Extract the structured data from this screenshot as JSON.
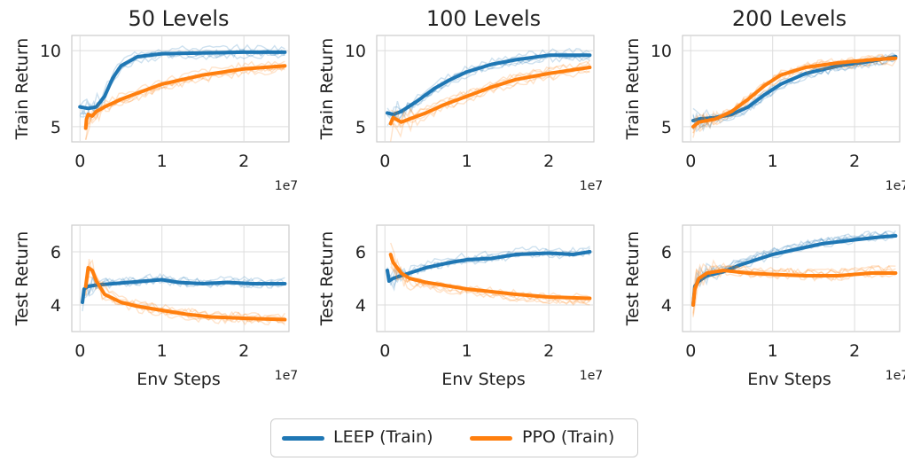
{
  "chart_data": [
    {
      "type": "line",
      "title": "50 Levels",
      "ylabel": "Train Return",
      "xlabel": "",
      "x_exponent_label": "1e7",
      "xlim": [
        -0.1,
        2.55
      ],
      "ylim": [
        4.0,
        11.0
      ],
      "xticks": [
        0,
        1,
        2
      ],
      "yticks": [
        5,
        10
      ],
      "series": [
        {
          "name": "LEEP (Train)",
          "color": "#1f77b4",
          "x": [
            0.0,
            0.1,
            0.2,
            0.3,
            0.4,
            0.5,
            0.7,
            1.0,
            1.5,
            2.0,
            2.5
          ],
          "y": [
            6.3,
            6.2,
            6.3,
            7.0,
            8.2,
            9.0,
            9.6,
            9.8,
            9.85,
            9.9,
            9.9
          ]
        },
        {
          "name": "PPO (Train)",
          "color": "#ff7f0e",
          "x": [
            0.07,
            0.08,
            0.1,
            0.15,
            0.2,
            0.3,
            0.5,
            0.75,
            1.0,
            1.5,
            2.0,
            2.5
          ],
          "y": [
            4.9,
            5.5,
            5.8,
            5.7,
            6.0,
            6.3,
            6.8,
            7.3,
            7.8,
            8.4,
            8.8,
            9.0
          ]
        }
      ]
    },
    {
      "type": "line",
      "title": "100 Levels",
      "ylabel": "Train Return",
      "xlabel": "",
      "x_exponent_label": "1e7",
      "xlim": [
        -0.1,
        2.55
      ],
      "ylim": [
        4.0,
        11.0
      ],
      "xticks": [
        0,
        1,
        2
      ],
      "yticks": [
        5,
        10
      ],
      "series": [
        {
          "name": "LEEP (Train)",
          "color": "#1f77b4",
          "x": [
            0.03,
            0.1,
            0.2,
            0.4,
            0.6,
            0.8,
            1.0,
            1.3,
            1.6,
            2.0,
            2.5
          ],
          "y": [
            5.9,
            5.8,
            6.0,
            6.7,
            7.5,
            8.1,
            8.6,
            9.1,
            9.4,
            9.7,
            9.7
          ]
        },
        {
          "name": "PPO (Train)",
          "color": "#ff7f0e",
          "x": [
            0.07,
            0.1,
            0.2,
            0.3,
            0.5,
            0.7,
            1.0,
            1.3,
            1.6,
            2.0,
            2.5
          ],
          "y": [
            5.2,
            5.6,
            5.3,
            5.5,
            5.9,
            6.4,
            7.0,
            7.6,
            8.1,
            8.5,
            8.9
          ]
        }
      ]
    },
    {
      "type": "line",
      "title": "200 Levels",
      "ylabel": "Train Return",
      "xlabel": "",
      "x_exponent_label": "1e7",
      "xlim": [
        -0.1,
        2.55
      ],
      "ylim": [
        4.0,
        11.0
      ],
      "xticks": [
        0,
        1,
        2
      ],
      "yticks": [
        5,
        10
      ],
      "series": [
        {
          "name": "LEEP (Train)",
          "color": "#1f77b4",
          "x": [
            0.03,
            0.1,
            0.3,
            0.5,
            0.7,
            0.9,
            1.1,
            1.4,
            1.8,
            2.2,
            2.5
          ],
          "y": [
            5.4,
            5.5,
            5.6,
            5.8,
            6.3,
            7.1,
            7.8,
            8.5,
            9.0,
            9.3,
            9.6
          ]
        },
        {
          "name": "PPO (Train)",
          "color": "#ff7f0e",
          "x": [
            0.03,
            0.1,
            0.3,
            0.5,
            0.7,
            0.9,
            1.1,
            1.4,
            1.8,
            2.2,
            2.5
          ],
          "y": [
            5.0,
            5.3,
            5.5,
            6.0,
            6.8,
            7.7,
            8.4,
            8.9,
            9.2,
            9.4,
            9.5
          ]
        }
      ]
    },
    {
      "type": "line",
      "title": "",
      "ylabel": "Test Return",
      "xlabel": "Env Steps",
      "x_exponent_label": "1e7",
      "xlim": [
        -0.1,
        2.55
      ],
      "ylim": [
        3.0,
        7.0
      ],
      "xticks": [
        0,
        1,
        2
      ],
      "yticks": [
        4,
        6
      ],
      "series": [
        {
          "name": "LEEP (Train)",
          "color": "#1f77b4",
          "x": [
            0.03,
            0.05,
            0.1,
            0.2,
            0.4,
            0.6,
            0.8,
            1.0,
            1.2,
            1.5,
            1.8,
            2.1,
            2.5
          ],
          "y": [
            4.1,
            4.6,
            4.7,
            4.75,
            4.8,
            4.85,
            4.9,
            4.95,
            4.85,
            4.8,
            4.85,
            4.8,
            4.8
          ]
        },
        {
          "name": "PPO (Train)",
          "color": "#ff7f0e",
          "x": [
            0.07,
            0.1,
            0.15,
            0.2,
            0.3,
            0.5,
            0.7,
            1.0,
            1.3,
            1.6,
            2.0,
            2.5
          ],
          "y": [
            4.7,
            5.4,
            5.3,
            4.9,
            4.4,
            4.1,
            3.95,
            3.8,
            3.65,
            3.55,
            3.5,
            3.45
          ]
        }
      ]
    },
    {
      "type": "line",
      "title": "",
      "ylabel": "Test Return",
      "xlabel": "Env Steps",
      "x_exponent_label": "1e7",
      "xlim": [
        -0.1,
        2.55
      ],
      "ylim": [
        3.0,
        7.0
      ],
      "xticks": [
        0,
        1,
        2
      ],
      "yticks": [
        4,
        6
      ],
      "series": [
        {
          "name": "LEEP (Train)",
          "color": "#1f77b4",
          "x": [
            0.03,
            0.05,
            0.1,
            0.2,
            0.3,
            0.5,
            0.8,
            1.0,
            1.3,
            1.6,
            2.0,
            2.3,
            2.5
          ],
          "y": [
            5.3,
            4.9,
            5.0,
            5.1,
            5.2,
            5.4,
            5.6,
            5.7,
            5.75,
            5.9,
            5.95,
            5.9,
            6.0
          ]
        },
        {
          "name": "PPO (Train)",
          "color": "#ff7f0e",
          "x": [
            0.07,
            0.1,
            0.15,
            0.2,
            0.3,
            0.5,
            0.8,
            1.0,
            1.3,
            1.6,
            2.0,
            2.5
          ],
          "y": [
            5.9,
            5.6,
            5.4,
            5.2,
            5.0,
            4.85,
            4.7,
            4.6,
            4.5,
            4.4,
            4.3,
            4.25
          ]
        }
      ]
    },
    {
      "type": "line",
      "title": "",
      "ylabel": "Test Return",
      "xlabel": "Env Steps",
      "x_exponent_label": "1e7",
      "xlim": [
        -0.1,
        2.55
      ],
      "ylim": [
        3.0,
        7.0
      ],
      "xticks": [
        0,
        1,
        2
      ],
      "yticks": [
        4,
        6
      ],
      "series": [
        {
          "name": "LEEP (Train)",
          "color": "#1f77b4",
          "x": [
            0.03,
            0.05,
            0.1,
            0.2,
            0.4,
            0.6,
            0.8,
            1.0,
            1.3,
            1.6,
            2.0,
            2.3,
            2.5
          ],
          "y": [
            4.0,
            4.7,
            4.9,
            5.1,
            5.25,
            5.5,
            5.7,
            5.9,
            6.1,
            6.3,
            6.45,
            6.55,
            6.6
          ]
        },
        {
          "name": "PPO (Train)",
          "color": "#ff7f0e",
          "x": [
            0.03,
            0.05,
            0.1,
            0.2,
            0.4,
            0.7,
            1.0,
            1.4,
            1.8,
            2.2,
            2.5
          ],
          "y": [
            4.0,
            4.6,
            5.0,
            5.2,
            5.3,
            5.2,
            5.15,
            5.1,
            5.1,
            5.2,
            5.2
          ]
        }
      ]
    }
  ],
  "legend": {
    "items": [
      {
        "label": "LEEP (Train)",
        "color": "#1f77b4"
      },
      {
        "label": "PPO (Train)",
        "color": "#ff7f0e"
      }
    ]
  }
}
